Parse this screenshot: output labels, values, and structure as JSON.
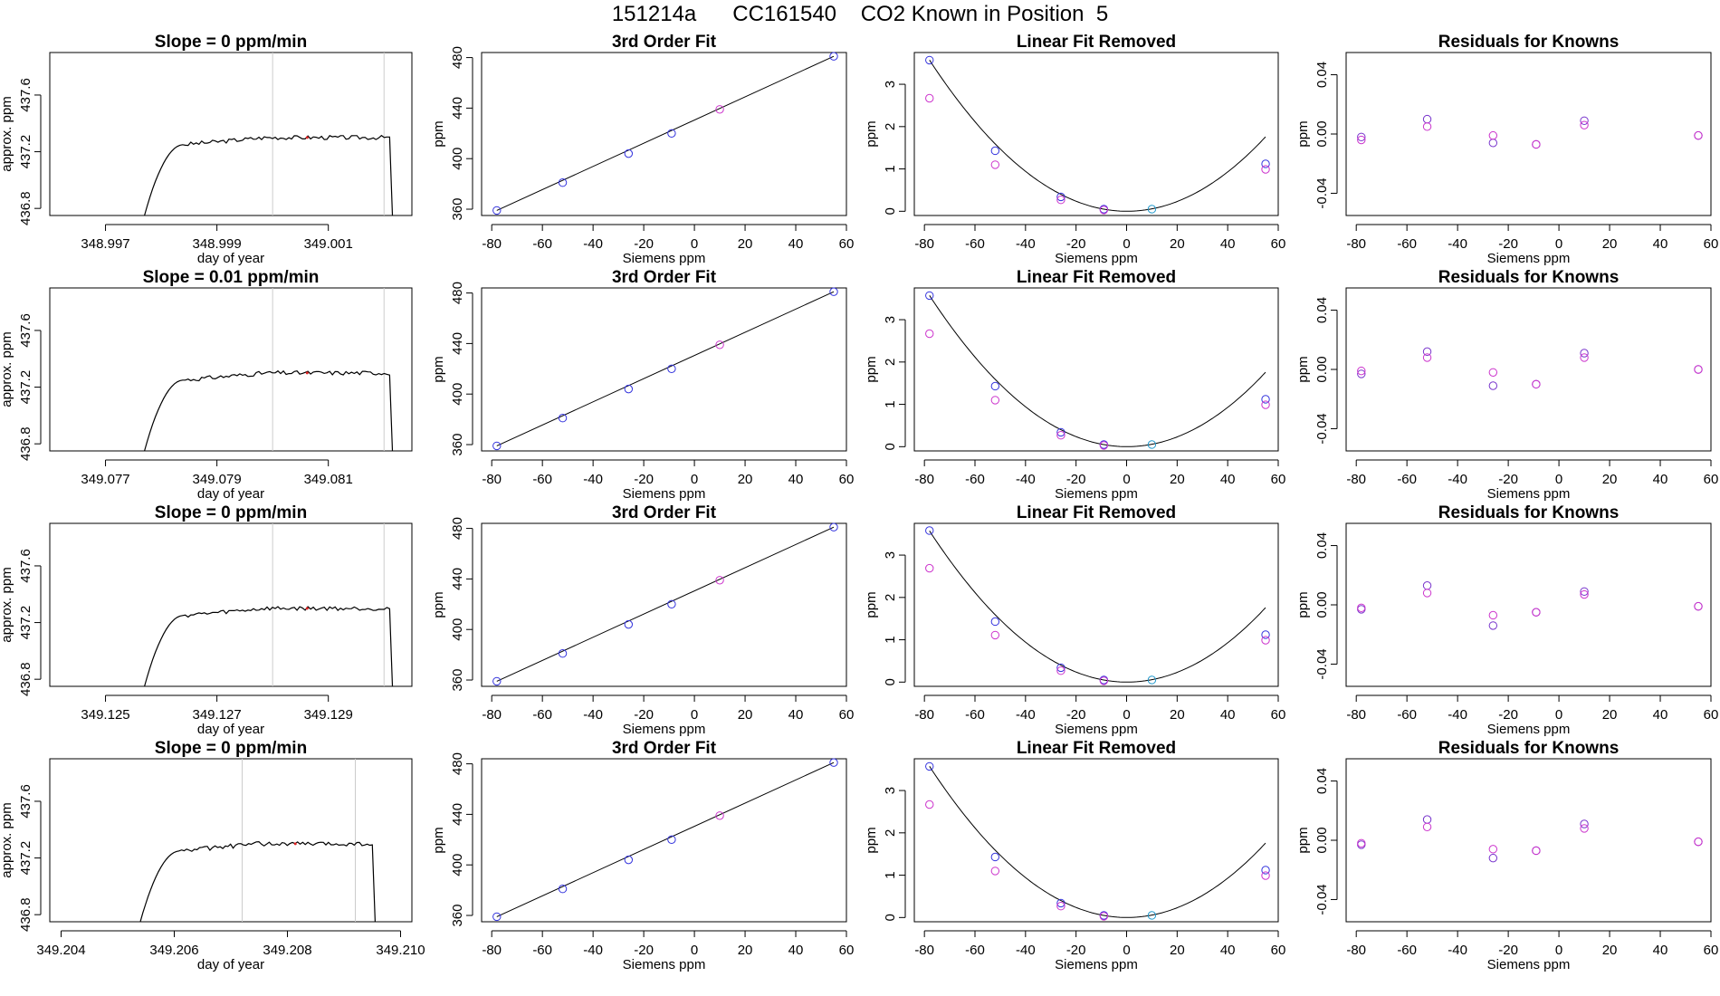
{
  "title": "151214a      CC161540    CO2 Known in Position  5",
  "colors": {
    "line": "#000000",
    "marker_blue": "#3333dd",
    "marker_magenta": "#cc33cc",
    "marker_cyan": "#2299cc",
    "marker_purple": "#7733cc",
    "vline": "#cccccc",
    "red_dot": "#dd2222"
  },
  "chart_data": [
    {
      "type": "line",
      "title": "Slope =  0  ppm/min",
      "xlabel": "day of year",
      "ylabel": "approx. ppm",
      "xlim": [
        348.996,
        349.0025
      ],
      "ylim": [
        436.75,
        437.9
      ],
      "xticks": [
        "348.997",
        "348.999",
        "349.001"
      ],
      "yticks": [
        "436.8",
        "437.2",
        "437.6"
      ],
      "vlines": [
        349.0,
        349.002
      ],
      "grid": false,
      "trace": {
        "start": 348.9977,
        "rise_end": 348.9984,
        "plateau_end": 349.0021,
        "end": 349.00215,
        "base": 436.75,
        "plateau": 437.3
      }
    },
    {
      "type": "scatter",
      "title": "3rd Order Fit",
      "xlabel": "Siemens ppm",
      "ylabel": "ppm",
      "xlim": [
        -84,
        60
      ],
      "ylim": [
        355,
        484
      ],
      "xticks": [
        "-80",
        "-60",
        "-40",
        "-20",
        "0",
        "20",
        "40",
        "60"
      ],
      "yticks": [
        "360",
        "400",
        "440",
        "480"
      ],
      "grid": false,
      "series": [
        {
          "color": "blue",
          "x": [
            -78,
            -52,
            -26,
            -9,
            55
          ],
          "y": [
            359,
            381,
            404,
            420,
            481
          ]
        },
        {
          "color": "magenta",
          "x": [
            10
          ],
          "y": [
            439
          ]
        }
      ],
      "fit_line": [
        [
          -78,
          359
        ],
        [
          55,
          481
        ]
      ]
    },
    {
      "type": "scatter",
      "title": "Linear Fit Removed",
      "xlabel": "Siemens ppm",
      "ylabel": "ppm",
      "xlim": [
        -84,
        60
      ],
      "ylim": [
        -0.1,
        3.75
      ],
      "xticks": [
        "-80",
        "-60",
        "-40",
        "-20",
        "0",
        "20",
        "40",
        "60"
      ],
      "yticks": [
        "0",
        "1",
        "2",
        "3"
      ],
      "grid": false,
      "series": [
        {
          "color": "blue",
          "x": [
            -78,
            -52,
            -26,
            -9,
            55
          ],
          "y": [
            3.57,
            1.43,
            0.34,
            0.05,
            1.12
          ]
        },
        {
          "color": "magenta",
          "x": [
            -78,
            -52,
            -26,
            -9,
            55
          ],
          "y": [
            2.67,
            1.1,
            0.27,
            0.03,
            0.99
          ]
        },
        {
          "color": "cyan",
          "x": [
            10
          ],
          "y": [
            0.05
          ]
        }
      ],
      "fit_curve": {
        "a": 0.000585,
        "b": -0.00018,
        "c": 0.0
      }
    },
    {
      "type": "scatter",
      "title": "Residuals for Knowns",
      "xlabel": "Siemens ppm",
      "ylabel": "ppm",
      "xlim": [
        -84,
        60
      ],
      "ylim": [
        -0.055,
        0.055
      ],
      "xticks": [
        "-80",
        "-60",
        "-40",
        "-20",
        "0",
        "20",
        "40",
        "60"
      ],
      "yticks": [
        "-0.04",
        "0.00",
        "0.04"
      ],
      "grid": false,
      "series": [
        {
          "color": "purple",
          "x": [
            -78,
            -52,
            -26,
            -9,
            10,
            55
          ],
          "y": [
            -0.002,
            0.01,
            -0.006,
            -0.007,
            0.009,
            -0.001
          ]
        },
        {
          "color": "magenta",
          "x": [
            -78,
            -52,
            -26,
            -9,
            10,
            55
          ],
          "y": [
            -0.004,
            0.005,
            -0.001,
            -0.007,
            0.006,
            -0.001
          ]
        }
      ]
    },
    {
      "type": "line",
      "title": "Slope =  0.01  ppm/min",
      "xlabel": "day of year",
      "ylabel": "approx. ppm",
      "xlim": [
        349.076,
        349.0825
      ],
      "ylim": [
        436.75,
        437.9
      ],
      "xticks": [
        "349.077",
        "349.079",
        "349.081"
      ],
      "yticks": [
        "436.8",
        "437.2",
        "437.6"
      ],
      "vlines": [
        349.08,
        349.082
      ],
      "grid": false,
      "trace": {
        "start": 349.0777,
        "rise_end": 349.0784,
        "plateau_end": 349.0821,
        "end": 349.08215,
        "base": 436.75,
        "plateau": 437.3
      }
    },
    {
      "type": "scatter",
      "title": "3rd Order Fit",
      "xlabel": "Siemens ppm",
      "ylabel": "ppm",
      "xlim": [
        -84,
        60
      ],
      "ylim": [
        355,
        484
      ],
      "xticks": [
        "-80",
        "-60",
        "-40",
        "-20",
        "0",
        "20",
        "40",
        "60"
      ],
      "yticks": [
        "360",
        "400",
        "440",
        "480"
      ],
      "grid": false,
      "series": [
        {
          "color": "blue",
          "x": [
            -78,
            -52,
            -26,
            -9,
            55
          ],
          "y": [
            359,
            381,
            404,
            420,
            481
          ]
        },
        {
          "color": "magenta",
          "x": [
            10
          ],
          "y": [
            439
          ]
        }
      ],
      "fit_line": [
        [
          -78,
          359
        ],
        [
          55,
          481
        ]
      ]
    },
    {
      "type": "scatter",
      "title": "Linear Fit Removed",
      "xlabel": "Siemens ppm",
      "ylabel": "ppm",
      "xlim": [
        -84,
        60
      ],
      "ylim": [
        -0.1,
        3.75
      ],
      "xticks": [
        "-80",
        "-60",
        "-40",
        "-20",
        "0",
        "20",
        "40",
        "60"
      ],
      "yticks": [
        "0",
        "1",
        "2",
        "3"
      ],
      "grid": false,
      "series": [
        {
          "color": "blue",
          "x": [
            -78,
            -52,
            -26,
            -9,
            55
          ],
          "y": [
            3.57,
            1.43,
            0.34,
            0.05,
            1.12
          ]
        },
        {
          "color": "magenta",
          "x": [
            -78,
            -52,
            -26,
            -9,
            55
          ],
          "y": [
            2.67,
            1.1,
            0.27,
            0.03,
            0.99
          ]
        },
        {
          "color": "cyan",
          "x": [
            10
          ],
          "y": [
            0.05
          ]
        }
      ],
      "fit_curve": {
        "a": 0.000585,
        "b": -0.00018,
        "c": 0.0
      }
    },
    {
      "type": "scatter",
      "title": "Residuals for Knowns",
      "xlabel": "Siemens ppm",
      "ylabel": "ppm",
      "xlim": [
        -84,
        60
      ],
      "ylim": [
        -0.055,
        0.055
      ],
      "xticks": [
        "-80",
        "-60",
        "-40",
        "-20",
        "0",
        "20",
        "40",
        "60"
      ],
      "yticks": [
        "-0.04",
        "0.00",
        "0.04"
      ],
      "grid": false,
      "series": [
        {
          "color": "purple",
          "x": [
            -78,
            -52,
            -26,
            -9,
            10,
            55
          ],
          "y": [
            -0.003,
            0.012,
            -0.011,
            -0.01,
            0.011,
            0.0
          ]
        },
        {
          "color": "magenta",
          "x": [
            -78,
            -52,
            -26,
            -9,
            10,
            55
          ],
          "y": [
            -0.001,
            0.008,
            -0.002,
            -0.01,
            0.008,
            0.0
          ]
        }
      ]
    },
    {
      "type": "line",
      "title": "Slope =  0  ppm/min",
      "xlabel": "day of year",
      "ylabel": "approx. ppm",
      "xlim": [
        349.124,
        349.1305
      ],
      "ylim": [
        436.75,
        437.9
      ],
      "xticks": [
        "349.125",
        "349.127",
        "349.129"
      ],
      "yticks": [
        "436.8",
        "437.2",
        "437.6"
      ],
      "vlines": [
        349.128,
        349.13
      ],
      "grid": false,
      "trace": {
        "start": 349.1257,
        "rise_end": 349.1264,
        "plateau_end": 349.1301,
        "end": 349.13015,
        "base": 436.75,
        "plateau": 437.3
      }
    },
    {
      "type": "scatter",
      "title": "3rd Order Fit",
      "xlabel": "Siemens ppm",
      "ylabel": "ppm",
      "xlim": [
        -84,
        60
      ],
      "ylim": [
        355,
        484
      ],
      "xticks": [
        "-80",
        "-60",
        "-40",
        "-20",
        "0",
        "20",
        "40",
        "60"
      ],
      "yticks": [
        "360",
        "400",
        "440",
        "480"
      ],
      "grid": false,
      "series": [
        {
          "color": "blue",
          "x": [
            -78,
            -52,
            -26,
            -9,
            55
          ],
          "y": [
            359,
            381,
            404,
            420,
            481
          ]
        },
        {
          "color": "magenta",
          "x": [
            10
          ],
          "y": [
            439
          ]
        }
      ],
      "fit_line": [
        [
          -78,
          359
        ],
        [
          55,
          481
        ]
      ]
    },
    {
      "type": "scatter",
      "title": "Linear Fit Removed",
      "xlabel": "Siemens ppm",
      "ylabel": "ppm",
      "xlim": [
        -84,
        60
      ],
      "ylim": [
        -0.1,
        3.75
      ],
      "xticks": [
        "-80",
        "-60",
        "-40",
        "-20",
        "0",
        "20",
        "40",
        "60"
      ],
      "yticks": [
        "0",
        "1",
        "2",
        "3"
      ],
      "grid": false,
      "series": [
        {
          "color": "blue",
          "x": [
            -78,
            -52,
            -26,
            -9,
            55
          ],
          "y": [
            3.58,
            1.43,
            0.34,
            0.05,
            1.12
          ]
        },
        {
          "color": "magenta",
          "x": [
            -78,
            -52,
            -26,
            -9,
            55
          ],
          "y": [
            2.69,
            1.11,
            0.27,
            0.03,
            0.99
          ]
        },
        {
          "color": "cyan",
          "x": [
            10
          ],
          "y": [
            0.05
          ]
        }
      ],
      "fit_curve": {
        "a": 0.000585,
        "b": -0.00018,
        "c": 0.0
      }
    },
    {
      "type": "scatter",
      "title": "Residuals for Knowns",
      "xlabel": "Siemens ppm",
      "ylabel": "ppm",
      "xlim": [
        -84,
        60
      ],
      "ylim": [
        -0.055,
        0.055
      ],
      "xticks": [
        "-80",
        "-60",
        "-40",
        "-20",
        "0",
        "20",
        "40",
        "60"
      ],
      "yticks": [
        "-0.04",
        "0.00",
        "0.04"
      ],
      "grid": false,
      "series": [
        {
          "color": "purple",
          "x": [
            -78,
            -52,
            -26,
            -9,
            10,
            55
          ],
          "y": [
            -0.003,
            0.013,
            -0.014,
            -0.005,
            0.009,
            -0.001
          ]
        },
        {
          "color": "magenta",
          "x": [
            -78,
            -52,
            -26,
            -9,
            10,
            55
          ],
          "y": [
            -0.002,
            0.008,
            -0.007,
            -0.005,
            0.007,
            -0.001
          ]
        }
      ]
    },
    {
      "type": "line",
      "title": "Slope =  0  ppm/min",
      "xlabel": "day of year",
      "ylabel": "approx. ppm",
      "xlim": [
        349.2038,
        349.2102
      ],
      "ylim": [
        436.75,
        437.9
      ],
      "xticks": [
        "349.204",
        "349.206",
        "349.208",
        "349.210"
      ],
      "yticks": [
        "436.8",
        "437.2",
        "437.6"
      ],
      "vlines": [
        349.2072,
        349.2092
      ],
      "grid": false,
      "trace": {
        "start": 349.2054,
        "rise_end": 349.2061,
        "plateau_end": 349.2095,
        "end": 349.20955,
        "base": 436.75,
        "plateau": 437.3
      }
    },
    {
      "type": "scatter",
      "title": "3rd Order Fit",
      "xlabel": "Siemens ppm",
      "ylabel": "ppm",
      "xlim": [
        -84,
        60
      ],
      "ylim": [
        355,
        484
      ],
      "xticks": [
        "-80",
        "-60",
        "-40",
        "-20",
        "0",
        "20",
        "40",
        "60"
      ],
      "yticks": [
        "360",
        "400",
        "440",
        "480"
      ],
      "grid": false,
      "series": [
        {
          "color": "blue",
          "x": [
            -78,
            -52,
            -26,
            -9,
            55
          ],
          "y": [
            359,
            381,
            404,
            420,
            481
          ]
        },
        {
          "color": "magenta",
          "x": [
            10
          ],
          "y": [
            439
          ]
        }
      ],
      "fit_line": [
        [
          -78,
          359
        ],
        [
          55,
          481
        ]
      ]
    },
    {
      "type": "scatter",
      "title": "Linear Fit Removed",
      "xlabel": "Siemens ppm",
      "ylabel": "ppm",
      "xlim": [
        -84,
        60
      ],
      "ylim": [
        -0.1,
        3.75
      ],
      "xticks": [
        "-80",
        "-60",
        "-40",
        "-20",
        "0",
        "20",
        "40",
        "60"
      ],
      "yticks": [
        "0",
        "1",
        "2",
        "3"
      ],
      "grid": false,
      "series": [
        {
          "color": "blue",
          "x": [
            -78,
            -52,
            -26,
            -9,
            55
          ],
          "y": [
            3.57,
            1.43,
            0.34,
            0.05,
            1.12
          ]
        },
        {
          "color": "magenta",
          "x": [
            -78,
            -52,
            -26,
            -9,
            55
          ],
          "y": [
            2.67,
            1.1,
            0.27,
            0.03,
            0.99
          ]
        },
        {
          "color": "cyan",
          "x": [
            10
          ],
          "y": [
            0.05
          ]
        }
      ],
      "fit_curve": {
        "a": 0.000585,
        "b": -0.00018,
        "c": 0.0
      }
    },
    {
      "type": "scatter",
      "title": "Residuals for Knowns",
      "xlabel": "Siemens ppm",
      "ylabel": "ppm",
      "xlim": [
        -84,
        60
      ],
      "ylim": [
        -0.055,
        0.055
      ],
      "xticks": [
        "-80",
        "-60",
        "-40",
        "-20",
        "0",
        "20",
        "40",
        "60"
      ],
      "yticks": [
        "-0.04",
        "0.00",
        "0.04"
      ],
      "grid": false,
      "series": [
        {
          "color": "purple",
          "x": [
            -78,
            -52,
            -26,
            -9,
            10,
            55
          ],
          "y": [
            -0.003,
            0.014,
            -0.012,
            -0.007,
            0.011,
            -0.001
          ]
        },
        {
          "color": "magenta",
          "x": [
            -78,
            -52,
            -26,
            -9,
            10,
            55
          ],
          "y": [
            -0.002,
            0.009,
            -0.006,
            -0.007,
            0.008,
            -0.001
          ]
        }
      ]
    }
  ]
}
